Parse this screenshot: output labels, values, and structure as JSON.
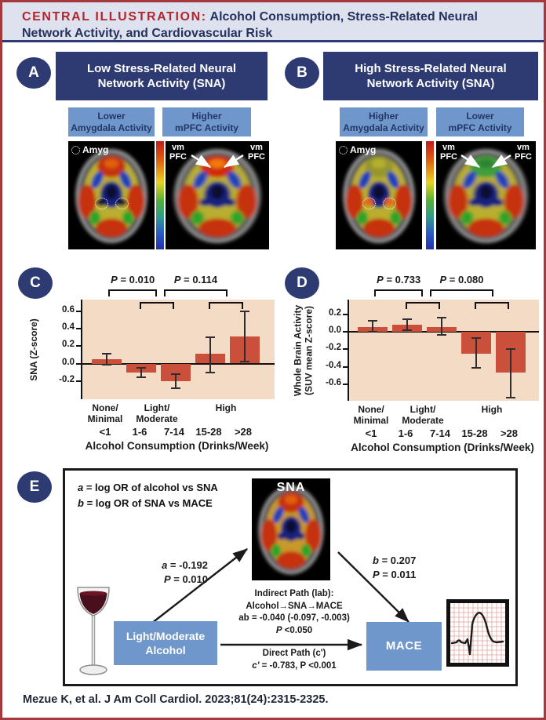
{
  "title": {
    "prefix": "CENTRAL ILLUSTRATION:",
    "text": " Alcohol Consumption, Stress-Related Neural Network Activity, and Cardiovascular Risk"
  },
  "panels": {
    "A": {
      "label": "A",
      "header": "Low Stress-Related Neural\nNetwork Activity (SNA)",
      "sub_left": "Lower\nAmygdala Activity",
      "sub_right": "Higher\nmPFC Activity",
      "amyg_label": "Amyg",
      "vmpfc": "vm\nPFC"
    },
    "B": {
      "label": "B",
      "header": "High Stress-Related Neural\nNetwork Activity (SNA)",
      "sub_left": "Higher\nAmygdala Activity",
      "sub_right": "Lower\nmPFC Activity",
      "amyg_label": "Amyg",
      "vmpfc": "vm\nPFC"
    },
    "C": {
      "label": "C"
    },
    "D": {
      "label": "D"
    },
    "E": {
      "label": "E",
      "legend_line1": "a = log OR of alcohol vs SNA",
      "legend_line2": "b = log OR of SNA vs MACE",
      "sna_label": "SNA",
      "path_a_line1": "a = -0.192",
      "path_a_line2": "P = 0.010",
      "path_b_line1": "b = 0.207",
      "path_b_line2": "P = 0.011",
      "indirect_line1": "Indirect Path (lab):",
      "indirect_line2": "Alcohol→SNA→MACE",
      "indirect_line3": "ab = -0.040 (-0.097, -0.003)",
      "indirect_line4": "P <0.050",
      "direct_line1": "Direct Path (c')",
      "direct_line2": "c' = -0.783, P <0.001",
      "alcohol_box": "Light/Moderate\nAlcohol",
      "mace_box": "MACE"
    }
  },
  "chart_data": [
    {
      "panel": "C",
      "type": "bar",
      "ylabel": [
        "SNA (Z-score)"
      ],
      "xlabel": "Alcohol Consumption (Drinks/Week)",
      "categories": [
        "<1",
        "1-6",
        "7-14",
        "15-28",
        ">28"
      ],
      "values": [
        0.05,
        -0.1,
        -0.2,
        0.11,
        0.31
      ],
      "err_lo": [
        -0.01,
        -0.16,
        -0.28,
        -0.1,
        0.02
      ],
      "err_hi": [
        0.11,
        -0.05,
        -0.12,
        0.3,
        0.6
      ],
      "yticks": [
        "0.6",
        "0.4",
        "0.2",
        "0.0",
        "-0.2"
      ],
      "ylim": [
        -0.41,
        0.735
      ],
      "grid": false,
      "bar_color": "#ca503c",
      "plot_bg": "#f3dbc5",
      "group_labels": [
        {
          "text": "None/\nMinimal",
          "at": 0
        },
        {
          "text": "Light/\nModerate",
          "at": 1.5
        },
        {
          "text": "High",
          "at": 3.5
        }
      ],
      "brackets": [
        {
          "label": "P = 0.010",
          "from": 0.1,
          "to": 1.5
        },
        {
          "label": "P = 0.114",
          "from": 1.7,
          "to": 3.55
        }
      ],
      "group_brackets": [
        [
          1,
          2
        ],
        [
          3,
          4
        ]
      ]
    },
    {
      "panel": "D",
      "type": "bar",
      "ylabel": [
        "Whole Brain Activity",
        "(SUV mean Z-score)"
      ],
      "xlabel": "Alcohol Consumption (Drinks/Week)",
      "categories": [
        "<1",
        "1-6",
        "7-14",
        "15-28",
        ">28"
      ],
      "values": [
        0.06,
        0.08,
        0.06,
        -0.25,
        -0.47
      ],
      "err_lo": [
        0.0,
        0.02,
        -0.03,
        -0.41,
        -0.75
      ],
      "err_hi": [
        0.13,
        0.15,
        0.16,
        -0.07,
        -0.2
      ],
      "yticks": [
        "0.2",
        "0.0",
        "-0.2",
        "-0.4",
        "-0.6"
      ],
      "ylim": [
        -0.79,
        0.37
      ],
      "grid": false,
      "bar_color": "#ca503c",
      "plot_bg": "#f3dbc5",
      "group_labels": [
        {
          "text": "None/\nMinimal",
          "at": 0
        },
        {
          "text": "Light/\nModerate",
          "at": 1.5
        },
        {
          "text": "High",
          "at": 3.5
        }
      ],
      "brackets": [
        {
          "label": "P = 0.733",
          "from": 0.1,
          "to": 1.5
        },
        {
          "label": "P = 0.080",
          "from": 1.7,
          "to": 3.55
        }
      ],
      "group_brackets": [
        [
          1,
          2
        ],
        [
          3,
          4
        ]
      ]
    }
  ],
  "citation": "Mezue K, et al. J Am Coll Cardiol. 2023;81(24):2315-2325.",
  "colors": {
    "border_red": "#a5383c",
    "title_red": "#b2252e",
    "navy": "#2d3b72",
    "title_navy": "#25315e",
    "band_bg": "#dde2ee",
    "light_blue": "#7097cb",
    "chart_bg": "#f3dbc5",
    "bar_red": "#ca503c"
  }
}
